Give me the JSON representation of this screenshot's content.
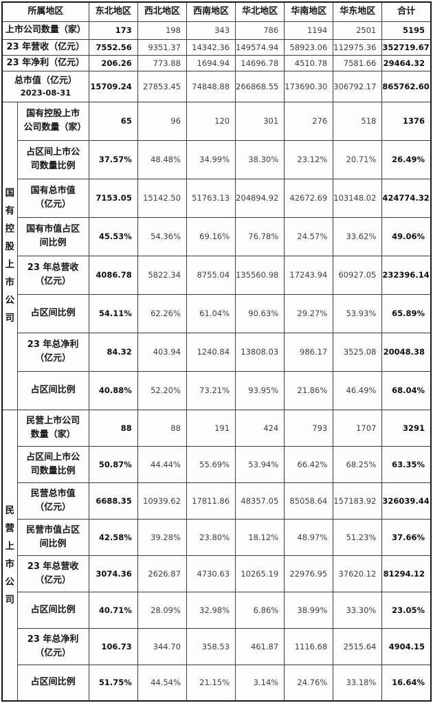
{
  "chart_data": {
    "type": "table",
    "title": "",
    "corner_label": "所属地区",
    "region_columns": [
      "东北地区",
      "西北地区",
      "西南地区",
      "华北地区",
      "华南地区",
      "华东地区",
      "合计"
    ],
    "summary_rows": [
      {
        "label": "上市公司数量（家）",
        "sublabel": "",
        "values": [
          "173",
          "198",
          "343",
          "786",
          "1194",
          "2501",
          "5195"
        ]
      },
      {
        "label": "23 年营收（亿元）",
        "sublabel": "",
        "values": [
          "7552.56",
          "9351.37",
          "14342.36",
          "149574.94",
          "58923.06",
          "112975.36",
          "352719.67"
        ]
      },
      {
        "label": "23 年净利（亿元）",
        "sublabel": "",
        "values": [
          "206.26",
          "773.88",
          "1694.94",
          "14696.78",
          "4510.78",
          "7581.66",
          "29464.32"
        ]
      },
      {
        "label": "总市值（亿元）",
        "sublabel": "2023-08-31",
        "values": [
          "15709.24",
          "27853.45",
          "74848.88",
          "266868.55",
          "173690.30",
          "306792.17",
          "865762.60"
        ]
      }
    ],
    "sections": [
      {
        "group_label": "国有控股上市公司",
        "rows": [
          {
            "label": "国有控股上市公司数量（家）",
            "values": [
              "65",
              "96",
              "120",
              "301",
              "276",
              "518",
              "1376"
            ]
          },
          {
            "label": "占区间上市公司数量比例",
            "values": [
              "37.57%",
              "48.48%",
              "34.99%",
              "38.30%",
              "23.12%",
              "20.71%",
              "26.49%"
            ]
          },
          {
            "label": "国有总市值（亿元）",
            "values": [
              "7153.05",
              "15142.50",
              "51763.13",
              "204894.92",
              "42672.69",
              "103148.02",
              "424774.32"
            ]
          },
          {
            "label": "国有市值占区间比例",
            "values": [
              "45.53%",
              "54.36%",
              "69.16%",
              "76.78%",
              "24.57%",
              "33.62%",
              "49.06%"
            ]
          },
          {
            "label": "23 年总营收（亿元）",
            "values": [
              "4086.78",
              "5822.34",
              "8755.04",
              "135560.98",
              "17243.94",
              "60927.05",
              "232396.14"
            ]
          },
          {
            "label": "占区间比例",
            "values": [
              "54.11%",
              "62.26%",
              "61.04%",
              "90.63%",
              "29.27%",
              "53.93%",
              "65.89%"
            ]
          },
          {
            "label": "23 年总净利（亿元）",
            "values": [
              "84.32",
              "403.94",
              "1240.84",
              "13808.03",
              "986.17",
              "3525.08",
              "20048.38"
            ]
          },
          {
            "label": "占区间比例",
            "values": [
              "40.88%",
              "52.20%",
              "73.21%",
              "93.95%",
              "21.86%",
              "46.49%",
              "68.04%"
            ]
          }
        ]
      },
      {
        "group_label": "民营上市公司",
        "rows": [
          {
            "label": "民营上市公司数量（家）",
            "values": [
              "88",
              "88",
              "191",
              "424",
              "793",
              "1707",
              "3291"
            ]
          },
          {
            "label": "占区间上市公司数量比例",
            "values": [
              "50.87%",
              "44.44%",
              "55.69%",
              "53.94%",
              "66.42%",
              "68.25%",
              "63.35%"
            ]
          },
          {
            "label": "民营总市值（亿元）",
            "values": [
              "6688.35",
              "10939.62",
              "17811.86",
              "48357.05",
              "85058.64",
              "157183.92",
              "326039.44"
            ]
          },
          {
            "label": "民营市值占区间比例",
            "values": [
              "42.58%",
              "39.28%",
              "23.80%",
              "18.12%",
              "48.97%",
              "51.23%",
              "37.66%"
            ]
          },
          {
            "label": "23 年总营收（亿元）",
            "values": [
              "3074.36",
              "2626.87",
              "4730.63",
              "10265.19",
              "22976.95",
              "37620.12",
              "81294.12"
            ]
          },
          {
            "label": "占区间比例",
            "values": [
              "40.71%",
              "28.09%",
              "32.98%",
              "6.86%",
              "38.99%",
              "33.30%",
              "23.05%"
            ]
          },
          {
            "label": "23 年总净利（亿元）",
            "values": [
              "106.73",
              "344.70",
              "358.53",
              "461.87",
              "1116.68",
              "2515.64",
              "4904.15"
            ]
          },
          {
            "label": "占区间比例",
            "values": [
              "51.75%",
              "44.54%",
              "21.15%",
              "3.14%",
              "24.76%",
              "33.18%",
              "16.64%"
            ]
          }
        ]
      }
    ],
    "layout": {
      "header_bold": true,
      "first_value_column_bold": true,
      "total_column_bold": true,
      "border_color": "#3c3c3c",
      "outer_border_color": "#161616",
      "text_strong_color": "#141414",
      "text_regular_color": "#3e3e3e"
    }
  }
}
